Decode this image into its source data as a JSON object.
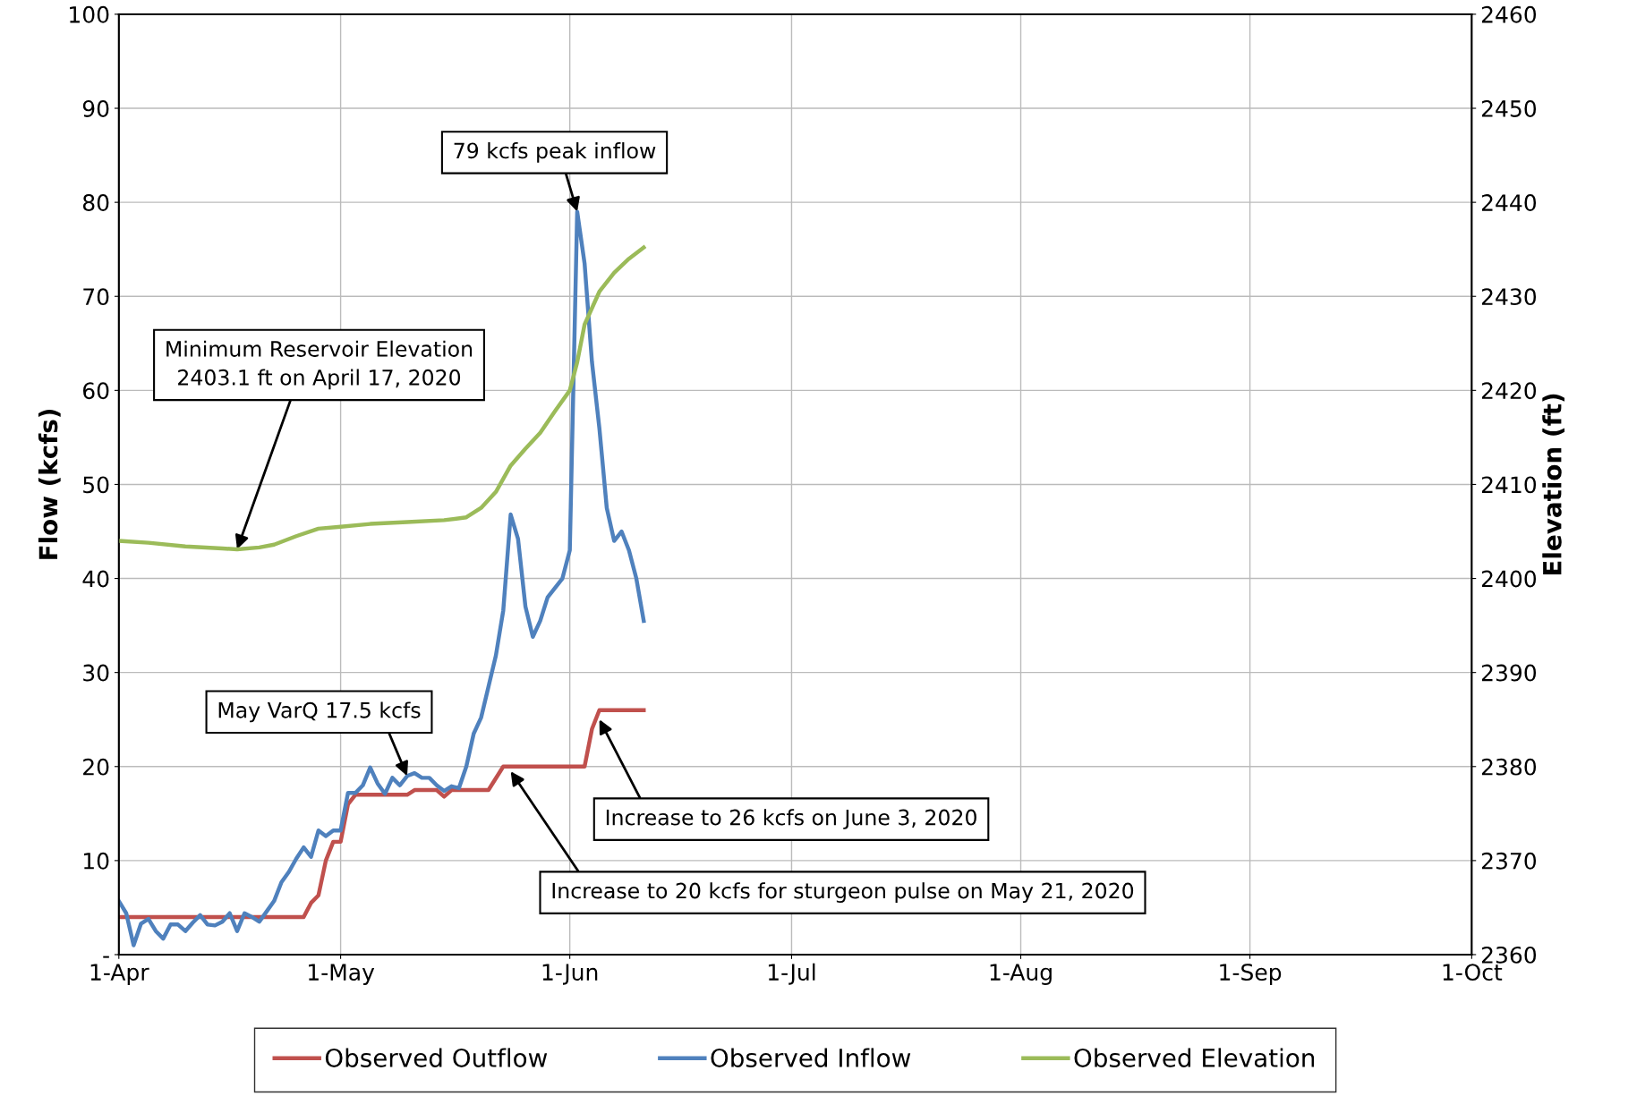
{
  "chart_data": {
    "type": "line",
    "ylabel": "Flow (kcfs)",
    "y2label": "Elevation (ft)",
    "xlim": [
      "2020-04-01",
      "2020-10-01"
    ],
    "xticks": [
      {
        "value": "2020-04-01",
        "label": "1-Apr"
      },
      {
        "value": "2020-05-01",
        "label": "1-May"
      },
      {
        "value": "2020-06-01",
        "label": "1-Jun"
      },
      {
        "value": "2020-07-01",
        "label": "1-Jul"
      },
      {
        "value": "2020-08-01",
        "label": "1-Aug"
      },
      {
        "value": "2020-09-01",
        "label": "1-Sep"
      },
      {
        "value": "2020-10-01",
        "label": "1-Oct"
      }
    ],
    "ylim": [
      0,
      100
    ],
    "yticks": [
      {
        "value": 0,
        "label": "-"
      },
      10,
      20,
      30,
      40,
      50,
      60,
      70,
      80,
      90,
      100
    ],
    "y2lim": [
      2360,
      2460
    ],
    "y2ticks": [
      2360,
      2370,
      2380,
      2390,
      2400,
      2410,
      2420,
      2430,
      2440,
      2450,
      2460
    ],
    "grid": true,
    "legend": "bottom",
    "marker": "none",
    "line_style": "solid",
    "series": [
      {
        "name": "Observed Outflow",
        "color": "#c0504d",
        "x": [
          "2020-04-01",
          "2020-04-26",
          "2020-04-27",
          "2020-04-28",
          "2020-04-29",
          "2020-04-30",
          "2020-05-01",
          "2020-05-02",
          "2020-05-03",
          "2020-05-10",
          "2020-05-11",
          "2020-05-14",
          "2020-05-15",
          "2020-05-16",
          "2020-05-21",
          "2020-05-23",
          "2020-06-03",
          "2020-06-04",
          "2020-06-05",
          "2020-06-11"
        ],
        "values": [
          4,
          4,
          5.5,
          6.3,
          10,
          12,
          12,
          16,
          17,
          17,
          17.5,
          17.5,
          16.8,
          17.5,
          17.5,
          20,
          20,
          24,
          26,
          26
        ]
      },
      {
        "name": "Observed Inflow",
        "color": "#4f81bd",
        "x": [
          "2020-04-01",
          "2020-04-02",
          "2020-04-03",
          "2020-04-04",
          "2020-04-05",
          "2020-04-06",
          "2020-04-07",
          "2020-04-08",
          "2020-04-09",
          "2020-04-10",
          "2020-04-11",
          "2020-04-12",
          "2020-04-13",
          "2020-04-14",
          "2020-04-15",
          "2020-04-16",
          "2020-04-17",
          "2020-04-18",
          "2020-04-19",
          "2020-04-20",
          "2020-04-21",
          "2020-04-22",
          "2020-04-23",
          "2020-04-24",
          "2020-04-25",
          "2020-04-26",
          "2020-04-27",
          "2020-04-28",
          "2020-04-29",
          "2020-04-30",
          "2020-05-01",
          "2020-05-02",
          "2020-05-03",
          "2020-05-04",
          "2020-05-05",
          "2020-05-06",
          "2020-05-07",
          "2020-05-08",
          "2020-05-09",
          "2020-05-10",
          "2020-05-11",
          "2020-05-12",
          "2020-05-13",
          "2020-05-14",
          "2020-05-15",
          "2020-05-16",
          "2020-05-17",
          "2020-05-18",
          "2020-05-19",
          "2020-05-20",
          "2020-05-21",
          "2020-05-22",
          "2020-05-23",
          "2020-05-24",
          "2020-05-25",
          "2020-05-26",
          "2020-05-27",
          "2020-05-28",
          "2020-05-29",
          "2020-05-30",
          "2020-05-31",
          "2020-06-01",
          "2020-06-02",
          "2020-06-03",
          "2020-06-04",
          "2020-06-05",
          "2020-06-06",
          "2020-06-07",
          "2020-06-08",
          "2020-06-09",
          "2020-06-10",
          "2020-06-11"
        ],
        "values": [
          5.7,
          4.4,
          1.0,
          3.3,
          3.8,
          2.5,
          1.7,
          3.2,
          3.2,
          2.5,
          3.4,
          4.2,
          3.2,
          3.1,
          3.5,
          4.4,
          2.5,
          4.4,
          4.0,
          3.5,
          4.6,
          5.7,
          7.7,
          8.8,
          10.2,
          11.4,
          10.4,
          13.2,
          12.6,
          13.2,
          13.2,
          17.2,
          17.2,
          18.0,
          19.9,
          18.2,
          17.1,
          18.8,
          18.0,
          19.0,
          19.3,
          18.8,
          18.8,
          18.0,
          17.4,
          17.9,
          17.7,
          20.0,
          23.5,
          25.2,
          28.5,
          31.8,
          36.6,
          46.8,
          44.2,
          37.0,
          33.8,
          35.5,
          38.0,
          39.0,
          40.0,
          43.0,
          79.0,
          73.5,
          63.0,
          56.0,
          47.5,
          44.0,
          45.0,
          43.0,
          40.0,
          35.5
        ]
      },
      {
        "name": "Observed Elevation",
        "color": "#9bbb59",
        "axis": "y2",
        "x": [
          "2020-04-01",
          "2020-04-05",
          "2020-04-10",
          "2020-04-15",
          "2020-04-17",
          "2020-04-20",
          "2020-04-22",
          "2020-04-25",
          "2020-04-28",
          "2020-05-01",
          "2020-05-05",
          "2020-05-10",
          "2020-05-15",
          "2020-05-18",
          "2020-05-20",
          "2020-05-22",
          "2020-05-24",
          "2020-05-26",
          "2020-05-28",
          "2020-05-30",
          "2020-06-01",
          "2020-06-02",
          "2020-06-03",
          "2020-06-05",
          "2020-06-07",
          "2020-06-09",
          "2020-06-11"
        ],
        "values": [
          2404.0,
          2403.8,
          2403.4,
          2403.2,
          2403.1,
          2403.3,
          2403.6,
          2404.5,
          2405.3,
          2405.5,
          2405.8,
          2406.0,
          2406.2,
          2406.5,
          2407.5,
          2409.2,
          2412.0,
          2413.8,
          2415.5,
          2417.8,
          2420.0,
          2423.0,
          2427.0,
          2430.5,
          2432.5,
          2434.0,
          2435.2
        ]
      }
    ],
    "annotations": [
      {
        "text": "79 kcfs peak inflow",
        "x": "2020-06-02",
        "y": 79
      },
      {
        "text": "Minimum Reservoir Elevation\n2403.1 ft on April 17, 2020",
        "x": "2020-04-17",
        "y": 43.1
      },
      {
        "text": "May VarQ 17.5 kcfs",
        "x": "2020-05-10",
        "y": 19
      },
      {
        "text": "Increase to 26 kcfs on June 3, 2020",
        "x": "2020-06-05",
        "y": 25
      },
      {
        "text": "Increase to 20 kcfs for sturgeon pulse on May 21, 2020",
        "x": "2020-05-24",
        "y": 19.5
      }
    ]
  }
}
